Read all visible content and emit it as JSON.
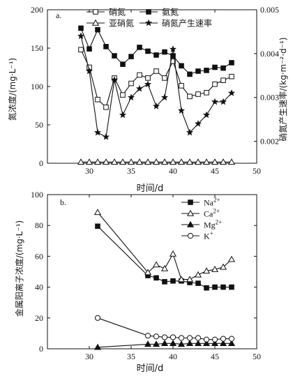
{
  "chart_data": [
    {
      "type": "line",
      "panel_label": "a.",
      "xlabel": "时间/d",
      "ylabel": "氮浓度/(mg·L⁻¹)",
      "y2label": "硝氮产生速率/(kg·m⁻²·d⁻¹)",
      "xlim": [
        25,
        50
      ],
      "ylim": [
        0,
        200
      ],
      "y2lim": [
        0.0015,
        0.005
      ],
      "x_ticks": [
        30,
        35,
        40,
        45,
        50
      ],
      "y_ticks": [
        0,
        50,
        100,
        150,
        200
      ],
      "y2_ticks": [
        0.002,
        0.003,
        0.004,
        0.005
      ],
      "legend_position": "top",
      "x": [
        29,
        30,
        31,
        32,
        33,
        34,
        35,
        36,
        37,
        38,
        39,
        40,
        41,
        42,
        43,
        44,
        45,
        46,
        47
      ],
      "series": [
        {
          "name": "硝氮",
          "marker": "open-square",
          "axis": "left",
          "values": [
            148,
            125,
            83,
            73,
            111,
            89,
            104,
            115,
            111,
            120,
            111,
            133,
            101,
            87,
            90,
            92,
            103,
            108,
            113
          ]
        },
        {
          "name": "氨氮",
          "marker": "filled-square",
          "axis": "left",
          "values": [
            176,
            149,
            174,
            152,
            140,
            129,
            139,
            151,
            146,
            141,
            145,
            140,
            127,
            116,
            120,
            121,
            125,
            124,
            131
          ]
        },
        {
          "name": "亚硝氮",
          "marker": "open-triangle",
          "axis": "left",
          "values": [
            1.5,
            1.5,
            1.5,
            1.5,
            1.5,
            1.5,
            1.5,
            1.5,
            1.5,
            1.5,
            1.5,
            1.5,
            1.5,
            1.5,
            1.5,
            1.5,
            1.5,
            1.5,
            1.5
          ]
        },
        {
          "name": "硝氮产生速率",
          "marker": "star",
          "axis": "right",
          "values": [
            0.0044,
            0.0036,
            0.0022,
            0.0021,
            0.0034,
            0.0026,
            0.003,
            0.0032,
            0.0033,
            0.0028,
            0.003,
            0.0041,
            0.0027,
            0.0022,
            0.0024,
            0.0026,
            0.0029,
            0.0029,
            0.0031
          ]
        }
      ]
    },
    {
      "type": "line",
      "panel_label": "b.",
      "xlabel": "时间/d",
      "ylabel": "金属阳离子浓度/(mg·L⁻¹)",
      "xlim": [
        25,
        50
      ],
      "ylim": [
        0,
        100
      ],
      "x_ticks": [
        30,
        35,
        40,
        45,
        50
      ],
      "y_ticks": [
        0,
        20,
        40,
        60,
        80,
        100
      ],
      "legend_position": "top-right",
      "x": [
        31,
        37,
        38,
        39,
        40,
        41,
        42,
        43,
        44,
        45,
        46,
        47
      ],
      "series": [
        {
          "name": "Na",
          "charge": "2+",
          "marker": "filled-square",
          "values": [
            79.5,
            47.5,
            46,
            43.5,
            44,
            44,
            43,
            42.5,
            39.5,
            40,
            40,
            40
          ]
        },
        {
          "name": "Ca",
          "charge": "2+",
          "marker": "open-triangle",
          "values": [
            88.5,
            49.5,
            54.5,
            52,
            61.5,
            45,
            45,
            48,
            50.5,
            51.5,
            53,
            58
          ]
        },
        {
          "name": "Mg",
          "charge": "2+",
          "marker": "filled-triangle",
          "values": [
            1,
            3,
            3,
            3.5,
            3.5,
            3,
            3.5,
            3.5,
            3.5,
            3.5,
            3.5,
            3.5
          ]
        },
        {
          "name": "K",
          "charge": "+",
          "marker": "open-circle",
          "values": [
            20,
            8.5,
            8,
            7.5,
            7.5,
            7,
            7,
            7,
            6,
            6,
            6.5,
            6.5
          ]
        }
      ]
    }
  ]
}
